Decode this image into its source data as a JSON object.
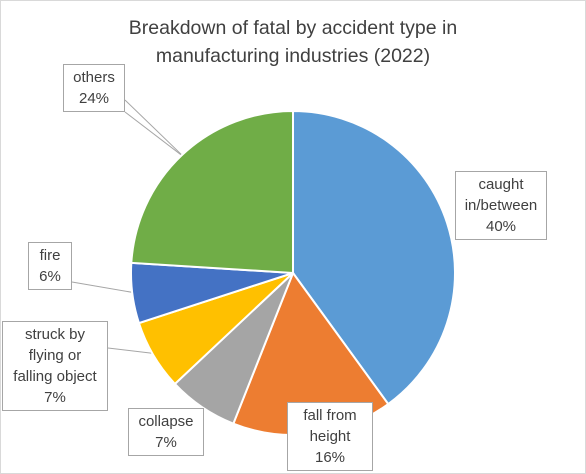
{
  "chart_data": {
    "type": "pie",
    "title_lines": [
      "Breakdown of fatal by accident type in",
      "manufacturing industries (2022)"
    ],
    "slices": [
      {
        "label_lines": [
          "caught",
          "in/between"
        ],
        "pct_text": "40%",
        "value": 40,
        "color": "#5b9bd5"
      },
      {
        "label_lines": [
          "fall from",
          "height"
        ],
        "pct_text": "16%",
        "value": 16,
        "color": "#ed7d31"
      },
      {
        "label_lines": [
          "collapse"
        ],
        "pct_text": "7%",
        "value": 7,
        "color": "#a5a5a5"
      },
      {
        "label_lines": [
          "struck by",
          "flying or",
          "falling object"
        ],
        "pct_text": "7%",
        "value": 7,
        "color": "#ffc000"
      },
      {
        "label_lines": [
          "fire"
        ],
        "pct_text": "6%",
        "value": 6,
        "color": "#4472c4"
      },
      {
        "label_lines": [
          "others"
        ],
        "pct_text": "24%",
        "value": 24,
        "color": "#70ad47"
      }
    ],
    "start": "12 o'clock",
    "direction": "clockwise",
    "legend": "none"
  }
}
